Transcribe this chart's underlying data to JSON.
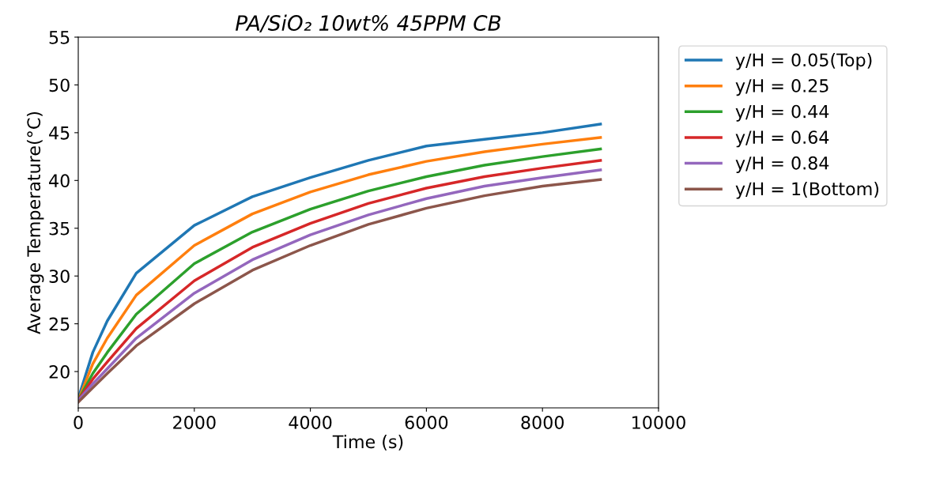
{
  "chart_data": {
    "type": "line",
    "title": "PA/SiO₂ 10wt% 45PPM CB",
    "xlabel": "Time (s)",
    "ylabel": "Average Temperature(°C)",
    "x": [
      0,
      250,
      500,
      1000,
      2000,
      3000,
      4000,
      5000,
      6000,
      7000,
      8000,
      9000
    ],
    "series": [
      {
        "name": "y/H = 0.05(Top)",
        "color": "#1f77b4",
        "values": [
          17.2,
          22,
          25.3,
          30.3,
          35.3,
          38.3,
          40.3,
          42.1,
          43.6,
          44.3,
          45,
          45.9
        ]
      },
      {
        "name": "y/H = 0.25",
        "color": "#ff7f0e",
        "values": [
          17,
          20.8,
          23.5,
          28,
          33.2,
          36.5,
          38.8,
          40.6,
          42,
          43,
          43.8,
          44.5
        ]
      },
      {
        "name": "y/H = 0.44",
        "color": "#2ca02c",
        "values": [
          17,
          19.8,
          22,
          26,
          31.3,
          34.6,
          37,
          38.9,
          40.4,
          41.6,
          42.5,
          43.3
        ]
      },
      {
        "name": "y/H = 0.64",
        "color": "#d62728",
        "values": [
          17,
          19.2,
          21,
          24.5,
          29.5,
          33,
          35.5,
          37.6,
          39.2,
          40.4,
          41.3,
          42.1
        ]
      },
      {
        "name": "y/H = 0.84",
        "color": "#9467bd",
        "values": [
          17,
          18.7,
          20.3,
          23.5,
          28.2,
          31.7,
          34.3,
          36.4,
          38.1,
          39.4,
          40.3,
          41.1
        ]
      },
      {
        "name": "y/H = 1(Bottom)",
        "color": "#8c564b",
        "values": [
          16.8,
          18.3,
          19.8,
          22.7,
          27.1,
          30.6,
          33.2,
          35.4,
          37.1,
          38.4,
          39.4,
          40.1
        ]
      }
    ],
    "xlim": [
      0,
      10000
    ],
    "xticks": [
      0,
      2000,
      4000,
      6000,
      8000,
      10000
    ],
    "ylim": [
      16.2,
      55
    ],
    "yticks": [
      20,
      25,
      30,
      35,
      40,
      45,
      50,
      55
    ],
    "grid": false,
    "legend": "right",
    "marker": "none",
    "line_style": "solid"
  }
}
